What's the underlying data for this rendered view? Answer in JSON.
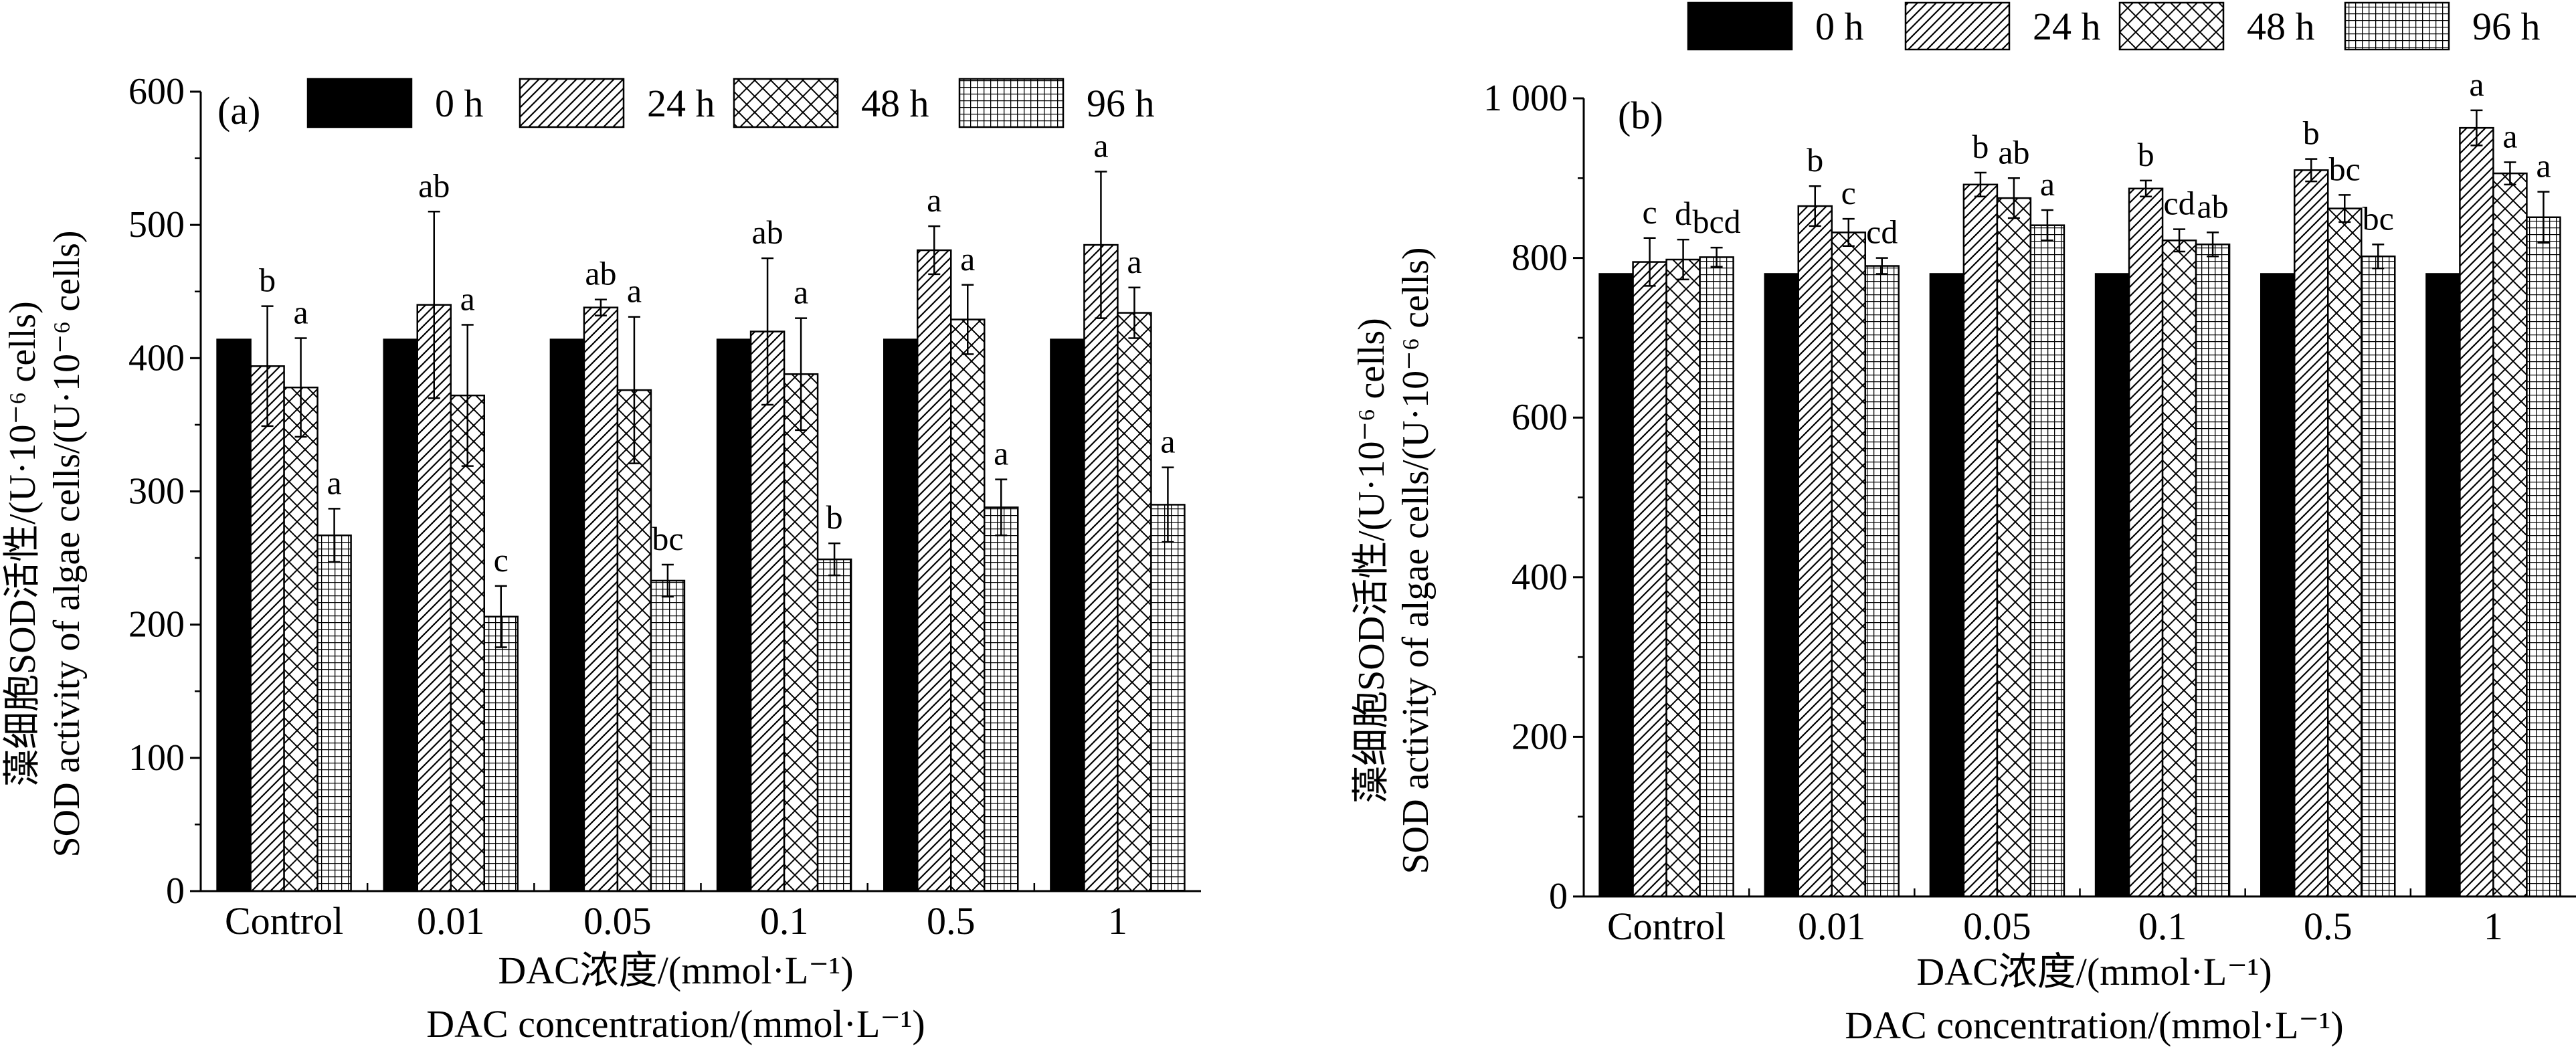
{
  "chart_data": [
    {
      "type": "bar",
      "panel_label": "(a)",
      "ylabel_cn": "藻细胞SOD活性/(U·10⁻⁶ cells)",
      "ylabel_en": "SOD activity of algae cells/(U·10⁻⁶ cells)",
      "xlabel_cn": "DAC浓度/(mmol·L⁻¹)",
      "xlabel_en": "DAC concentration/(mmol·L⁻¹)",
      "ylim": [
        0,
        600
      ],
      "yticks": [
        0,
        100,
        200,
        300,
        400,
        500,
        600
      ],
      "ytick_labels": [
        "0",
        "100",
        "200",
        "300",
        "400",
        "500",
        "600"
      ],
      "categories": [
        "Control",
        "0.01",
        "0.05",
        "0.1",
        "0.5",
        "1"
      ],
      "legend": "top",
      "series": [
        {
          "name": "0 h",
          "pattern": "solid",
          "values": [
            414,
            414,
            414,
            414,
            414,
            414
          ],
          "errors": [
            0,
            0,
            0,
            0,
            0,
            0
          ],
          "letters": [
            "",
            "",
            "",
            "",
            "",
            ""
          ]
        },
        {
          "name": "24 h",
          "pattern": "diag",
          "values": [
            394,
            440,
            438,
            420,
            481,
            485
          ],
          "errors": [
            45,
            70,
            6,
            55,
            18,
            55
          ],
          "letters": [
            "b",
            "ab",
            "ab",
            "ab",
            "a",
            "a"
          ]
        },
        {
          "name": "48 h",
          "pattern": "cross",
          "values": [
            378,
            372,
            376,
            388,
            429,
            434
          ],
          "errors": [
            37,
            53,
            55,
            42,
            26,
            19
          ],
          "letters": [
            "a",
            "a",
            "a",
            "a",
            "a",
            "a"
          ]
        },
        {
          "name": "96 h",
          "pattern": "grid",
          "values": [
            267,
            206,
            233,
            249,
            288,
            290
          ],
          "errors": [
            20,
            23,
            12,
            12,
            21,
            28
          ],
          "letters": [
            "a",
            "c",
            "bc",
            "b",
            "a",
            "a"
          ]
        }
      ]
    },
    {
      "type": "bar",
      "panel_label": "(b)",
      "ylabel_cn": "藻细胞SOD活性/(U·10⁻⁶ cells)",
      "ylabel_en": "SOD activity of algae cells/(U·10⁻⁶ cells)",
      "xlabel_cn": "DAC浓度/(mmol·L⁻¹)",
      "xlabel_en": "DAC concentration/(mmol·L⁻¹)",
      "ylim": [
        0,
        1000
      ],
      "yticks": [
        0,
        200,
        400,
        600,
        800,
        1000
      ],
      "ytick_labels": [
        "0",
        "200",
        "400",
        "600",
        "800",
        "1 000"
      ],
      "categories": [
        "Control",
        "0.01",
        "0.05",
        "0.1",
        "0.5",
        "1"
      ],
      "legend": "top",
      "series": [
        {
          "name": "0 h",
          "pattern": "solid",
          "values": [
            780,
            780,
            780,
            780,
            780,
            780
          ],
          "errors": [
            0,
            0,
            0,
            0,
            0,
            0
          ],
          "letters": [
            "",
            "",
            "",
            "",
            "",
            ""
          ]
        },
        {
          "name": "24 h",
          "pattern": "diag",
          "values": [
            795,
            865,
            892,
            887,
            910,
            963
          ],
          "errors": [
            30,
            25,
            15,
            10,
            14,
            22
          ],
          "letters": [
            "c",
            "b",
            "b",
            "b",
            "b",
            "a"
          ]
        },
        {
          "name": "48 h",
          "pattern": "cross",
          "values": [
            798,
            832,
            875,
            822,
            862,
            906
          ],
          "errors": [
            25,
            17,
            25,
            14,
            17,
            14
          ],
          "letters": [
            "d",
            "c",
            "ab",
            "cd",
            "bc",
            "a"
          ]
        },
        {
          "name": "96 h",
          "pattern": "grid",
          "values": [
            801,
            790,
            841,
            817,
            802,
            851
          ],
          "errors": [
            12,
            10,
            19,
            15,
            15,
            32
          ],
          "letters": [
            "bcd",
            "cd",
            "a",
            "ab",
            "bc",
            "a"
          ]
        }
      ]
    }
  ]
}
